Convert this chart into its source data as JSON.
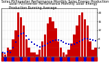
{
  "title": "Solar PV/Inverter Performance Monthly Solar Energy Production Running Average",
  "bar_values": [
    2,
    1,
    4,
    3,
    8,
    12,
    20,
    18,
    14,
    8,
    4,
    2,
    2,
    1,
    3,
    7,
    10,
    15,
    18,
    16,
    13,
    7,
    4,
    2,
    1,
    3,
    6,
    10,
    14,
    19,
    20,
    17,
    14,
    7,
    3,
    4
  ],
  "running_avg": [
    2,
    1.5,
    2.3,
    2.0,
    4.0,
    6.5,
    9.3,
    10.5,
    10.7,
    9.4,
    8.0,
    6.7,
    5.7,
    4.9,
    4.5,
    4.7,
    5.1,
    5.9,
    6.7,
    7.3,
    7.6,
    7.5,
    7.1,
    6.6,
    6.0,
    5.7,
    5.5,
    5.7,
    6.2,
    7.0,
    7.7,
    8.1,
    8.3,
    8.0,
    7.6,
    7.1
  ],
  "bar_color": "#cc0000",
  "avg_color": "#0000cc",
  "bg_color": "#ffffff",
  "plot_bg": "#ffffff",
  "grid_color": "#999999",
  "ylim": [
    0,
    22
  ],
  "ytick_vals": [
    4,
    8,
    12,
    16,
    20
  ],
  "ytick_labels": [
    "4",
    "8",
    "12",
    "16",
    "20"
  ],
  "n_bars": 36,
  "bottom_strip_color": "#0000dd",
  "bottom_bar_color": "#cc0000",
  "title_fontsize": 3.5,
  "tick_fontsize": 3.0,
  "figwidth": 1.6,
  "figheight": 1.0,
  "dpi": 100
}
